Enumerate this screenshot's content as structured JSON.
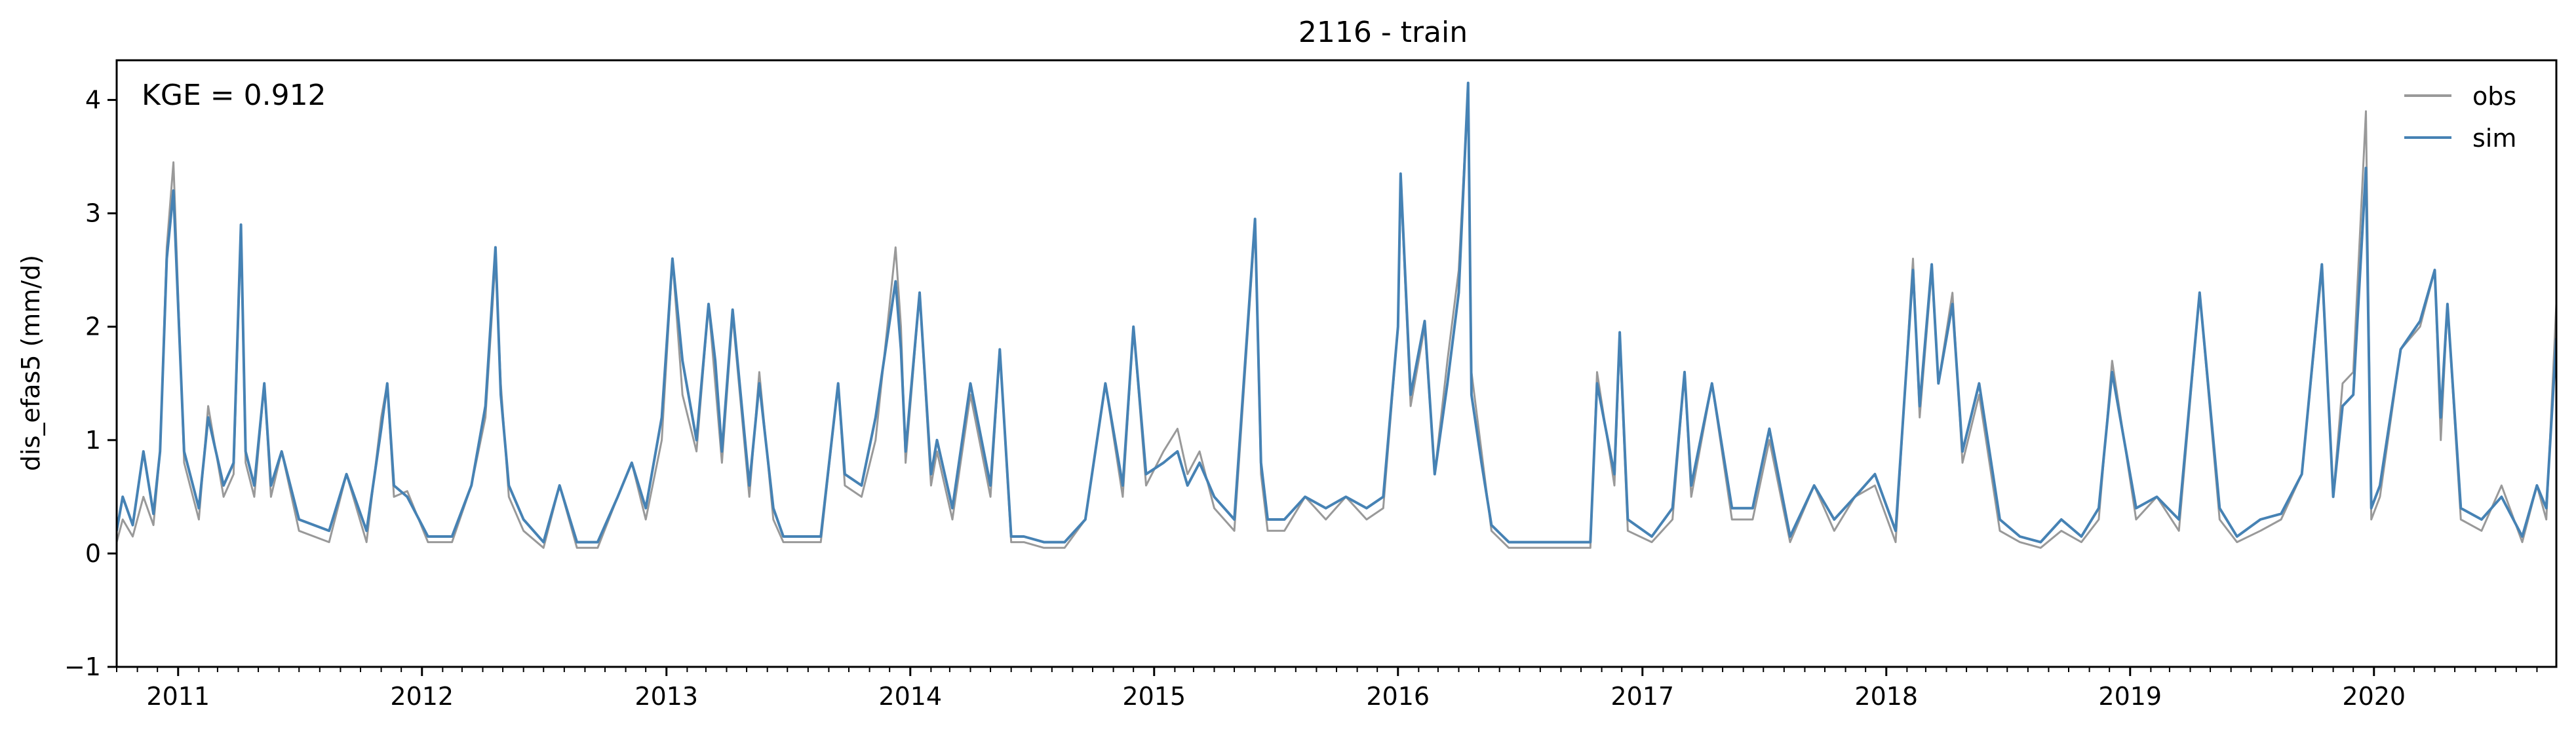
{
  "chart_data": {
    "type": "line",
    "title": "2116 - train",
    "xlabel": "",
    "ylabel": "dis_efas5 (mm/d)",
    "xlim": [
      "2010-10-01",
      "2020-09-30"
    ],
    "ylim": [
      -1,
      4.35
    ],
    "yticks": [
      -1,
      0,
      1,
      2,
      3,
      4
    ],
    "ytick_labels": [
      "−1",
      "0",
      "1",
      "2",
      "3",
      "4"
    ],
    "xtick_labels": [
      "2011",
      "2012",
      "2013",
      "2014",
      "2015",
      "2016",
      "2017",
      "2018",
      "2019",
      "2020"
    ],
    "xtick_dates": [
      "2011-01-01",
      "2012-01-01",
      "2013-01-01",
      "2014-01-01",
      "2015-01-01",
      "2016-01-01",
      "2017-01-01",
      "2018-01-01",
      "2019-01-01",
      "2020-01-01"
    ],
    "grid": false,
    "legend_position": "top-right",
    "annotation": "KGE = 0.912",
    "series": [
      {
        "name": "obs",
        "color": "#999999",
        "x": [
          "2010-10-01",
          "2010-10-10",
          "2010-10-25",
          "2010-11-10",
          "2010-11-25",
          "2010-12-05",
          "2010-12-15",
          "2010-12-25",
          "2011-01-10",
          "2011-02-01",
          "2011-02-15",
          "2011-03-10",
          "2011-03-25",
          "2011-04-05",
          "2011-04-12",
          "2011-04-25",
          "2011-05-10",
          "2011-05-20",
          "2011-06-05",
          "2011-07-01",
          "2011-08-15",
          "2011-09-10",
          "2011-10-10",
          "2011-11-01",
          "2011-11-10",
          "2011-11-20",
          "2011-12-10",
          "2012-01-10",
          "2012-02-15",
          "2012-03-15",
          "2012-04-05",
          "2012-04-20",
          "2012-04-28",
          "2012-05-10",
          "2012-06-01",
          "2012-07-01",
          "2012-07-25",
          "2012-08-20",
          "2012-09-20",
          "2012-10-20",
          "2012-11-10",
          "2012-12-01",
          "2012-12-25",
          "2013-01-10",
          "2013-01-25",
          "2013-02-15",
          "2013-03-05",
          "2013-03-15",
          "2013-03-25",
          "2013-04-10",
          "2013-05-05",
          "2013-05-20",
          "2013-06-10",
          "2013-06-25",
          "2013-07-20",
          "2013-08-20",
          "2013-09-15",
          "2013-09-25",
          "2013-10-20",
          "2013-11-10",
          "2013-12-10",
          "2013-12-18",
          "2013-12-25",
          "2014-01-15",
          "2014-02-01",
          "2014-02-10",
          "2014-03-05",
          "2014-04-01",
          "2014-05-01",
          "2014-05-15",
          "2014-06-01",
          "2014-06-20",
          "2014-07-20",
          "2014-08-20",
          "2014-09-20",
          "2014-10-20",
          "2014-11-15",
          "2014-12-01",
          "2014-12-20",
          "2015-01-15",
          "2015-02-05",
          "2015-02-20",
          "2015-03-10",
          "2015-04-01",
          "2015-05-01",
          "2015-06-01",
          "2015-06-10",
          "2015-06-20",
          "2015-07-15",
          "2015-08-15",
          "2015-09-15",
          "2015-10-15",
          "2015-11-15",
          "2015-12-10",
          "2016-01-01",
          "2016-01-05",
          "2016-01-20",
          "2016-02-10",
          "2016-02-25",
          "2016-03-15",
          "2016-04-01",
          "2016-04-15",
          "2016-04-20",
          "2016-05-05",
          "2016-05-20",
          "2016-06-15",
          "2016-07-15",
          "2016-08-15",
          "2016-09-15",
          "2016-10-15",
          "2016-10-25",
          "2016-11-20",
          "2016-11-28",
          "2016-12-10",
          "2017-01-15",
          "2017-02-15",
          "2017-03-05",
          "2017-03-15",
          "2017-04-15",
          "2017-05-15",
          "2017-06-15",
          "2017-07-10",
          "2017-08-10",
          "2017-09-15",
          "2017-10-15",
          "2017-11-15",
          "2017-12-15",
          "2018-01-15",
          "2018-02-10",
          "2018-02-20",
          "2018-03-10",
          "2018-03-20",
          "2018-04-10",
          "2018-04-25",
          "2018-05-20",
          "2018-06-20",
          "2018-07-20",
          "2018-08-20",
          "2018-09-20",
          "2018-10-20",
          "2018-11-15",
          "2018-12-05",
          "2019-01-10",
          "2019-02-10",
          "2019-03-15",
          "2019-04-15",
          "2019-05-15",
          "2019-06-10",
          "2019-07-15",
          "2019-08-15",
          "2019-09-15",
          "2019-10-15",
          "2019-11-01",
          "2019-11-15",
          "2019-12-01",
          "2019-12-20",
          "2019-12-28",
          "2020-01-10",
          "2020-02-10",
          "2020-03-10",
          "2020-04-01",
          "2020-04-10",
          "2020-04-20",
          "2020-05-10",
          "2020-06-10",
          "2020-07-10",
          "2020-08-10",
          "2020-09-01",
          "2020-09-15",
          "2020-09-30"
        ],
        "y": [
          0.1,
          0.3,
          0.15,
          0.5,
          0.25,
          0.9,
          2.7,
          3.45,
          0.8,
          0.3,
          1.3,
          0.5,
          0.7,
          2.85,
          0.8,
          0.5,
          1.5,
          0.5,
          0.9,
          0.2,
          0.1,
          0.7,
          0.1,
          1.2,
          1.5,
          0.5,
          0.55,
          0.1,
          0.1,
          0.6,
          1.2,
          2.6,
          1.5,
          0.5,
          0.2,
          0.05,
          0.6,
          0.05,
          0.05,
          0.5,
          0.8,
          0.3,
          1.0,
          2.6,
          1.4,
          0.9,
          2.2,
          1.5,
          0.8,
          2.1,
          0.5,
          1.6,
          0.3,
          0.1,
          0.1,
          0.1,
          1.5,
          0.6,
          0.5,
          1.0,
          2.7,
          2.0,
          0.8,
          2.3,
          0.6,
          0.9,
          0.3,
          1.4,
          0.5,
          1.8,
          0.1,
          0.1,
          0.05,
          0.05,
          0.3,
          1.5,
          0.5,
          2.0,
          0.6,
          0.9,
          1.1,
          0.7,
          0.9,
          0.4,
          0.2,
          2.9,
          0.7,
          0.2,
          0.2,
          0.5,
          0.3,
          0.5,
          0.3,
          0.4,
          2.0,
          3.3,
          1.3,
          2.0,
          0.7,
          1.7,
          2.5,
          4.1,
          1.6,
          0.9,
          0.2,
          0.05,
          0.05,
          0.05,
          0.05,
          0.05,
          1.6,
          0.6,
          1.9,
          0.2,
          0.1,
          0.3,
          1.6,
          0.5,
          1.5,
          0.3,
          0.3,
          1.0,
          0.1,
          0.6,
          0.2,
          0.5,
          0.6,
          0.1,
          2.6,
          1.2,
          2.5,
          1.5,
          2.3,
          0.8,
          1.4,
          0.2,
          0.1,
          0.05,
          0.2,
          0.1,
          0.3,
          1.7,
          0.3,
          0.5,
          0.2,
          2.3,
          0.3,
          0.1,
          0.2,
          0.3,
          0.7,
          2.5,
          0.5,
          1.5,
          1.6,
          3.9,
          0.3,
          0.5,
          1.8,
          2.0,
          2.5,
          1.0,
          2.2,
          0.3,
          0.2,
          0.6,
          0.1,
          0.6,
          0.3,
          2.2
        ]
      },
      {
        "name": "sim",
        "color": "#4682b4",
        "x": [
          "2010-10-01",
          "2010-10-10",
          "2010-10-25",
          "2010-11-10",
          "2010-11-25",
          "2010-12-05",
          "2010-12-15",
          "2010-12-25",
          "2011-01-10",
          "2011-02-01",
          "2011-02-15",
          "2011-03-10",
          "2011-03-25",
          "2011-04-05",
          "2011-04-12",
          "2011-04-25",
          "2011-05-10",
          "2011-05-20",
          "2011-06-05",
          "2011-07-01",
          "2011-08-15",
          "2011-09-10",
          "2011-10-10",
          "2011-11-01",
          "2011-11-10",
          "2011-11-20",
          "2011-12-10",
          "2012-01-10",
          "2012-02-15",
          "2012-03-15",
          "2012-04-05",
          "2012-04-20",
          "2012-04-28",
          "2012-05-10",
          "2012-06-01",
          "2012-07-01",
          "2012-07-25",
          "2012-08-20",
          "2012-09-20",
          "2012-10-20",
          "2012-11-10",
          "2012-12-01",
          "2012-12-25",
          "2013-01-10",
          "2013-01-25",
          "2013-02-15",
          "2013-03-05",
          "2013-03-15",
          "2013-03-25",
          "2013-04-10",
          "2013-05-05",
          "2013-05-20",
          "2013-06-10",
          "2013-06-25",
          "2013-07-20",
          "2013-08-20",
          "2013-09-15",
          "2013-09-25",
          "2013-10-20",
          "2013-11-10",
          "2013-12-10",
          "2013-12-18",
          "2013-12-25",
          "2014-01-15",
          "2014-02-01",
          "2014-02-10",
          "2014-03-05",
          "2014-04-01",
          "2014-05-01",
          "2014-05-15",
          "2014-06-01",
          "2014-06-20",
          "2014-07-20",
          "2014-08-20",
          "2014-09-20",
          "2014-10-20",
          "2014-11-15",
          "2014-12-01",
          "2014-12-20",
          "2015-01-15",
          "2015-02-05",
          "2015-02-20",
          "2015-03-10",
          "2015-04-01",
          "2015-05-01",
          "2015-06-01",
          "2015-06-10",
          "2015-06-20",
          "2015-07-15",
          "2015-08-15",
          "2015-09-15",
          "2015-10-15",
          "2015-11-15",
          "2015-12-10",
          "2016-01-01",
          "2016-01-05",
          "2016-01-20",
          "2016-02-10",
          "2016-02-25",
          "2016-03-15",
          "2016-04-01",
          "2016-04-15",
          "2016-04-20",
          "2016-05-05",
          "2016-05-20",
          "2016-06-15",
          "2016-07-15",
          "2016-08-15",
          "2016-09-15",
          "2016-10-15",
          "2016-10-25",
          "2016-11-20",
          "2016-11-28",
          "2016-12-10",
          "2017-01-15",
          "2017-02-15",
          "2017-03-05",
          "2017-03-15",
          "2017-04-15",
          "2017-05-15",
          "2017-06-15",
          "2017-07-10",
          "2017-08-10",
          "2017-09-15",
          "2017-10-15",
          "2017-11-15",
          "2017-12-15",
          "2018-01-15",
          "2018-02-10",
          "2018-02-20",
          "2018-03-10",
          "2018-03-20",
          "2018-04-10",
          "2018-04-25",
          "2018-05-20",
          "2018-06-20",
          "2018-07-20",
          "2018-08-20",
          "2018-09-20",
          "2018-10-20",
          "2018-11-15",
          "2018-12-05",
          "2019-01-10",
          "2019-02-10",
          "2019-03-15",
          "2019-04-15",
          "2019-05-15",
          "2019-06-10",
          "2019-07-15",
          "2019-08-15",
          "2019-09-15",
          "2019-10-15",
          "2019-11-01",
          "2019-11-15",
          "2019-12-01",
          "2019-12-20",
          "2019-12-28",
          "2020-01-10",
          "2020-02-10",
          "2020-03-10",
          "2020-04-01",
          "2020-04-10",
          "2020-04-20",
          "2020-05-10",
          "2020-06-10",
          "2020-07-10",
          "2020-08-10",
          "2020-09-01",
          "2020-09-15",
          "2020-09-30"
        ],
        "y": [
          0.2,
          0.5,
          0.25,
          0.9,
          0.35,
          0.9,
          2.6,
          3.2,
          0.9,
          0.4,
          1.2,
          0.6,
          0.8,
          2.9,
          0.9,
          0.6,
          1.5,
          0.6,
          0.9,
          0.3,
          0.2,
          0.7,
          0.2,
          1.1,
          1.5,
          0.6,
          0.5,
          0.15,
          0.15,
          0.6,
          1.3,
          2.7,
          1.4,
          0.6,
          0.3,
          0.1,
          0.6,
          0.1,
          0.1,
          0.5,
          0.8,
          0.4,
          1.2,
          2.6,
          1.7,
          1.0,
          2.2,
          1.7,
          0.9,
          2.15,
          0.6,
          1.5,
          0.4,
          0.15,
          0.15,
          0.15,
          1.5,
          0.7,
          0.6,
          1.2,
          2.4,
          1.8,
          0.9,
          2.3,
          0.7,
          1.0,
          0.4,
          1.5,
          0.6,
          1.8,
          0.15,
          0.15,
          0.1,
          0.1,
          0.3,
          1.5,
          0.6,
          2.0,
          0.7,
          0.8,
          0.9,
          0.6,
          0.8,
          0.5,
          0.3,
          2.95,
          0.8,
          0.3,
          0.3,
          0.5,
          0.4,
          0.5,
          0.4,
          0.5,
          2.0,
          3.35,
          1.4,
          2.05,
          0.7,
          1.5,
          2.3,
          4.15,
          1.4,
          0.8,
          0.25,
          0.1,
          0.1,
          0.1,
          0.1,
          0.1,
          1.5,
          0.7,
          1.95,
          0.3,
          0.15,
          0.4,
          1.6,
          0.6,
          1.5,
          0.4,
          0.4,
          1.1,
          0.15,
          0.6,
          0.3,
          0.5,
          0.7,
          0.2,
          2.5,
          1.3,
          2.55,
          1.5,
          2.2,
          0.9,
          1.5,
          0.3,
          0.15,
          0.1,
          0.3,
          0.15,
          0.4,
          1.6,
          0.4,
          0.5,
          0.3,
          2.3,
          0.4,
          0.15,
          0.3,
          0.35,
          0.7,
          2.55,
          0.5,
          1.3,
          1.4,
          3.4,
          0.4,
          0.6,
          1.8,
          2.05,
          2.5,
          1.2,
          2.2,
          0.4,
          0.3,
          0.5,
          0.15,
          0.6,
          0.4,
          1.9
        ]
      }
    ]
  }
}
